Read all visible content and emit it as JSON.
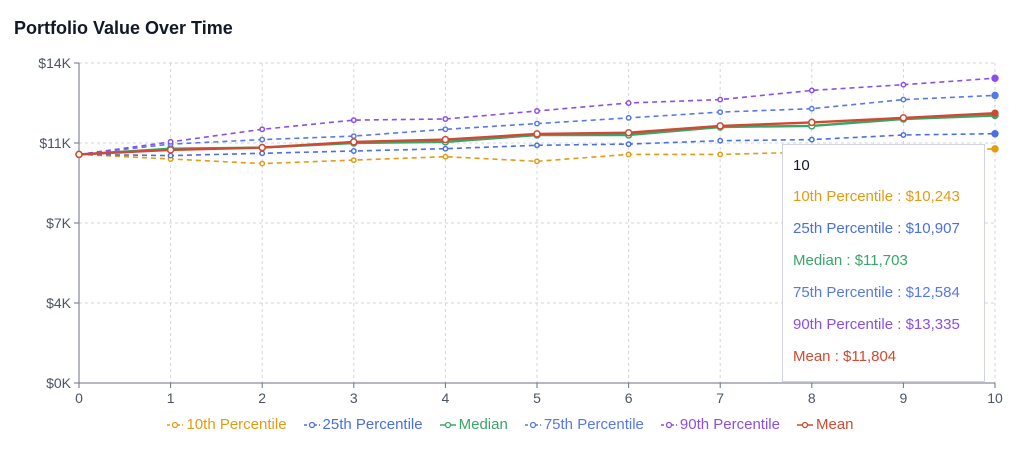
{
  "title": "Portfolio Value Over Time",
  "chart_data": {
    "type": "line",
    "x": [
      0,
      1,
      2,
      3,
      4,
      5,
      6,
      7,
      8,
      9,
      10
    ],
    "xlabel": "",
    "ylabel": "",
    "ylim": [
      0,
      14000
    ],
    "xlim": [
      0,
      10
    ],
    "yticks": [
      0,
      3500,
      7000,
      10500,
      14000
    ],
    "ytick_labels": [
      "$0K",
      "$4K",
      "$7K",
      "$11K",
      "$14K"
    ],
    "xtick_labels": [
      "0",
      "1",
      "2",
      "3",
      "4",
      "5",
      "6",
      "7",
      "8",
      "9",
      "10"
    ],
    "grid": true,
    "legend_position": "bottom",
    "series": [
      {
        "name": "10th Percentile",
        "color": "#e39b12",
        "dashed": true,
        "values": [
          10000,
          9800,
          9600,
          9750,
          9900,
          9700,
          10000,
          10000,
          10100,
          10150,
          10243
        ]
      },
      {
        "name": "25th Percentile",
        "color": "#4a6fe3",
        "dashed": true,
        "values": [
          10000,
          9950,
          10050,
          10150,
          10250,
          10400,
          10450,
          10600,
          10650,
          10850,
          10907
        ]
      },
      {
        "name": "Median",
        "color": "#3aa569",
        "dashed": false,
        "values": [
          10000,
          10250,
          10300,
          10500,
          10550,
          10850,
          10850,
          11200,
          11250,
          11550,
          11703
        ]
      },
      {
        "name": "75th Percentile",
        "color": "#5779e8",
        "dashed": true,
        "values": [
          10000,
          10450,
          10650,
          10800,
          11100,
          11350,
          11600,
          11850,
          12000,
          12400,
          12584
        ]
      },
      {
        "name": "90th Percentile",
        "color": "#8a4fea",
        "dashed": true,
        "values": [
          10000,
          10550,
          11100,
          11500,
          11550,
          11900,
          12250,
          12400,
          12800,
          13050,
          13335
        ]
      },
      {
        "name": "Mean",
        "color": "#d04a33",
        "dashed": false,
        "values": [
          10000,
          10200,
          10300,
          10550,
          10650,
          10900,
          10950,
          11250,
          11400,
          11600,
          11804
        ]
      }
    ]
  },
  "tooltip": {
    "label": "10",
    "rows": [
      {
        "text": "10th Percentile : $10,243",
        "color": "#e39b12"
      },
      {
        "text": "25th Percentile : $10,907",
        "color": "#4a6fe3"
      },
      {
        "text": "Median : $11,703",
        "color": "#3aa569"
      },
      {
        "text": "75th Percentile : $12,584",
        "color": "#5779e8"
      },
      {
        "text": "90th Percentile : $13,335",
        "color": "#8a4fea"
      },
      {
        "text": "Mean : $11,804",
        "color": "#d04a33"
      }
    ]
  }
}
